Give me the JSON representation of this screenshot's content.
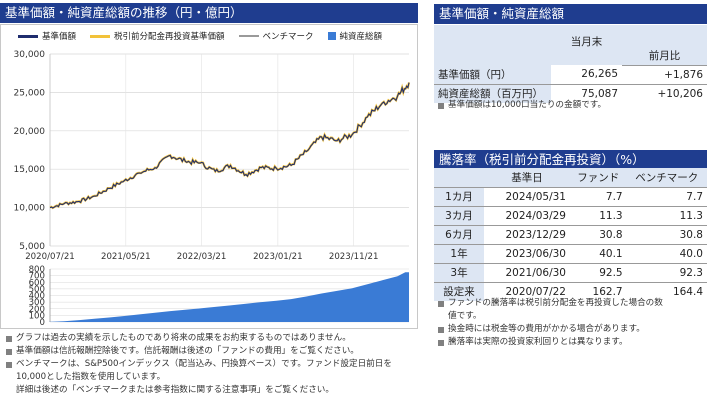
{
  "left_header": "基準価額・純資産総額の推移（円・億円）",
  "right_header1": "基準価額・純資産総額",
  "right_header2": "騰落率（税引前分配金再投資）（%）",
  "legend": [
    {
      "label": "基準価額",
      "color": "#1f2d6e",
      "kind": "line"
    },
    {
      "label": "税引前分配金再投資基準価額",
      "color": "#f2c23a",
      "kind": "line"
    },
    {
      "label": "ベンチマーク",
      "color": "#9a9a9a",
      "kind": "line"
    },
    {
      "label": "純資産総額",
      "color": "#3a7bd5",
      "kind": "box"
    }
  ],
  "chart_data": [
    {
      "type": "line",
      "series": [
        {
          "name": "基準価額",
          "color": "#1f2d6e"
        },
        {
          "name": "税引前分配金再投資基準価額",
          "color": "#f2c23a"
        },
        {
          "name": "ベンチマーク",
          "color": "#9a9a9a"
        }
      ],
      "start_date": "2020-07-21",
      "end_date": "2024-06-30",
      "x": [
        "2020-07-21",
        "2020-09",
        "2020-11",
        "2021-01",
        "2021-03",
        "2021-05",
        "2021-07",
        "2021-09",
        "2021-11",
        "2022-01",
        "2022-03",
        "2022-05",
        "2022-07",
        "2022-09",
        "2022-11",
        "2023-01",
        "2023-03",
        "2023-05",
        "2023-07",
        "2023-09",
        "2023-11",
        "2024-01",
        "2024-03",
        "2024-05",
        "2024-06-30"
      ],
      "values": [
        10000,
        10500,
        10800,
        11500,
        12500,
        13500,
        14500,
        15200,
        16800,
        16000,
        15800,
        14700,
        15500,
        14300,
        15200,
        15100,
        15500,
        17300,
        19200,
        18700,
        19500,
        21800,
        23600,
        24500,
        26265
      ],
      "xticks": [
        "2020/07/21",
        "2021/05/21",
        "2022/03/21",
        "2023/01/21",
        "2023/11/21"
      ],
      "yticks": [
        "5,000",
        "10,000",
        "15,000",
        "20,000",
        "25,000",
        "30,000"
      ],
      "ylim": [
        5000,
        30000
      ],
      "grid": true
    },
    {
      "type": "area",
      "series": [
        {
          "name": "純資産総額",
          "color": "#3a7bd5"
        }
      ],
      "x": [
        "2020-07",
        "2020-09",
        "2020-11",
        "2021-01",
        "2021-03",
        "2021-05",
        "2021-07",
        "2021-09",
        "2021-11",
        "2022-01",
        "2022-03",
        "2022-05",
        "2022-07",
        "2022-09",
        "2022-11",
        "2023-01",
        "2023-03",
        "2023-05",
        "2023-07",
        "2023-09",
        "2023-11",
        "2024-01",
        "2024-03",
        "2024-05",
        "2024-06"
      ],
      "values": [
        2,
        12,
        28,
        48,
        68,
        90,
        115,
        140,
        165,
        185,
        205,
        228,
        250,
        275,
        300,
        320,
        345,
        385,
        430,
        470,
        510,
        570,
        630,
        690,
        751
      ],
      "yticks": [
        "0",
        "100",
        "200",
        "300",
        "400",
        "500",
        "600",
        "700",
        "800"
      ],
      "ylim": [
        0,
        800
      ],
      "grid": true
    }
  ],
  "left_notes": [
    {
      "bullet": true,
      "text": "グラフは過去の実績を示したものであり将来の成果をお約束するものではありません。"
    },
    {
      "bullet": true,
      "text": "基準価額は信託報酬控除後です。信託報酬は後述の「ファンドの費用」をご覧ください。"
    },
    {
      "bullet": true,
      "text": "ベンチマークは、S&P500インデックス（配当込み、円換算ベース）です。ファンド設定日前日を"
    },
    {
      "bullet": false,
      "text": "10,000とした指数を使用しています。"
    },
    {
      "bullet": false,
      "text": "詳細は後述の「ベンチマークまたは参考指数に関する注意事項」をご覧ください。"
    }
  ],
  "nav_table": {
    "col_current": "当月末",
    "col_change": "前月比",
    "rows": [
      {
        "label": "基準価額（円）",
        "value": "26,265",
        "change": "+1,876"
      },
      {
        "label": "純資産総額（百万円）",
        "value": "75,087",
        "change": "+10,206"
      }
    ],
    "note": "基準価額は10,000口当たりの金額です。"
  },
  "perf_table": {
    "headers": [
      "基準日",
      "ファンド",
      "ベンチマーク"
    ],
    "rows": [
      {
        "period": "1カ月",
        "date": "2024/05/31",
        "fund": "7.7",
        "bench": "7.7"
      },
      {
        "period": "3カ月",
        "date": "2024/03/29",
        "fund": "11.3",
        "bench": "11.3"
      },
      {
        "period": "6カ月",
        "date": "2023/12/29",
        "fund": "30.8",
        "bench": "30.8"
      },
      {
        "period": "1年",
        "date": "2023/06/30",
        "fund": "40.1",
        "bench": "40.0"
      },
      {
        "period": "3年",
        "date": "2021/06/30",
        "fund": "92.5",
        "bench": "92.3"
      },
      {
        "period": "設定来",
        "date": "2020/07/22",
        "fund": "162.7",
        "bench": "164.4"
      }
    ]
  },
  "right_notes": [
    {
      "bullet": true,
      "text": "ファンドの騰落率は税引前分配金を再投資した場合の数"
    },
    {
      "bullet": false,
      "text": "値です。"
    },
    {
      "bullet": true,
      "text": "換金時には税金等の費用がかかる場合があります。"
    },
    {
      "bullet": true,
      "text": "騰落率は実際の投資家利回りとは異なります。"
    }
  ]
}
